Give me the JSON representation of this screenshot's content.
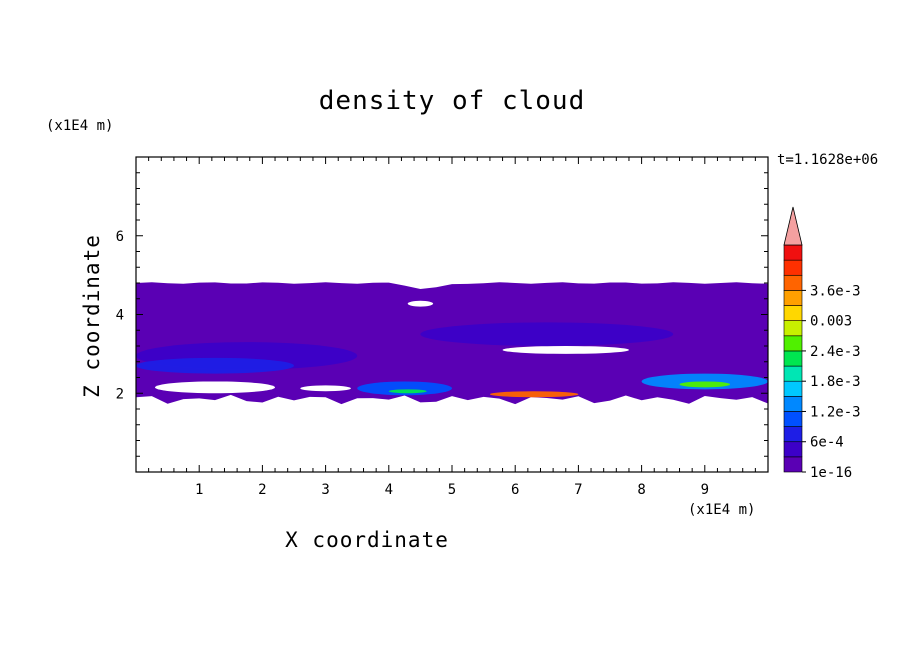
{
  "chart_data": {
    "type": "heatmap",
    "title": "density of cloud",
    "xlabel": "X coordinate",
    "ylabel": "Z coordinate",
    "x_unit": "(x1E4 m)",
    "y_unit": "(x1E4 m)",
    "annotation": "t=1.1628e+06",
    "xlim": [
      0,
      10
    ],
    "ylim": [
      0,
      8
    ],
    "x_ticks": [
      "1",
      "2",
      "3",
      "4",
      "5",
      "6",
      "7",
      "8",
      "9"
    ],
    "x_tick_values": [
      1,
      2,
      3,
      4,
      5,
      6,
      7,
      8,
      9
    ],
    "y_ticks": [
      "2",
      "4",
      "6"
    ],
    "y_tick_values": [
      2,
      4,
      6
    ],
    "colorbar": {
      "labels": [
        "1e-16",
        "6e-4",
        "1.2e-3",
        "1.8e-3",
        "2.4e-3",
        "0.003",
        "3.6e-3"
      ],
      "colors": [
        "#5a00b4",
        "#3c00c8",
        "#1e1ee6",
        "#0050ff",
        "#0088ff",
        "#00c8ff",
        "#00e6b4",
        "#00e650",
        "#50f000",
        "#c8f000",
        "#ffd700",
        "#ffa000",
        "#ff6400",
        "#ff3000",
        "#f01010"
      ],
      "extend_color": "#f4a0a0"
    },
    "cloud_layer": {
      "top": 4.8,
      "bottom": 1.85
    },
    "bands": [
      {
        "level": 1,
        "color": "#3c00c8",
        "x": [
          0,
          3.5
        ],
        "z": [
          2.6,
          3.3
        ]
      },
      {
        "level": 1,
        "color": "#3c00c8",
        "x": [
          4.5,
          8.5
        ],
        "z": [
          3.2,
          3.8
        ]
      },
      {
        "level": 2,
        "color": "#1e1ee6",
        "x": [
          0,
          2.5
        ],
        "z": [
          2.5,
          2.9
        ]
      },
      {
        "level": 3,
        "color": "#0050ff",
        "x": [
          3.5,
          5
        ],
        "z": [
          1.95,
          2.3
        ]
      },
      {
        "level": 4,
        "color": "#0088ff",
        "x": [
          8,
          10
        ],
        "z": [
          2.1,
          2.5
        ]
      },
      {
        "level": 7,
        "color": "#00e650",
        "x": [
          4,
          4.6
        ],
        "z": [
          2.0,
          2.1
        ]
      },
      {
        "level": 8,
        "color": "#50f000",
        "x": [
          8.6,
          9.4
        ],
        "z": [
          2.15,
          2.3
        ]
      },
      {
        "level": 12,
        "color": "#ff6400",
        "x": [
          5.6,
          7.0
        ],
        "z": [
          1.9,
          2.05
        ]
      }
    ]
  }
}
